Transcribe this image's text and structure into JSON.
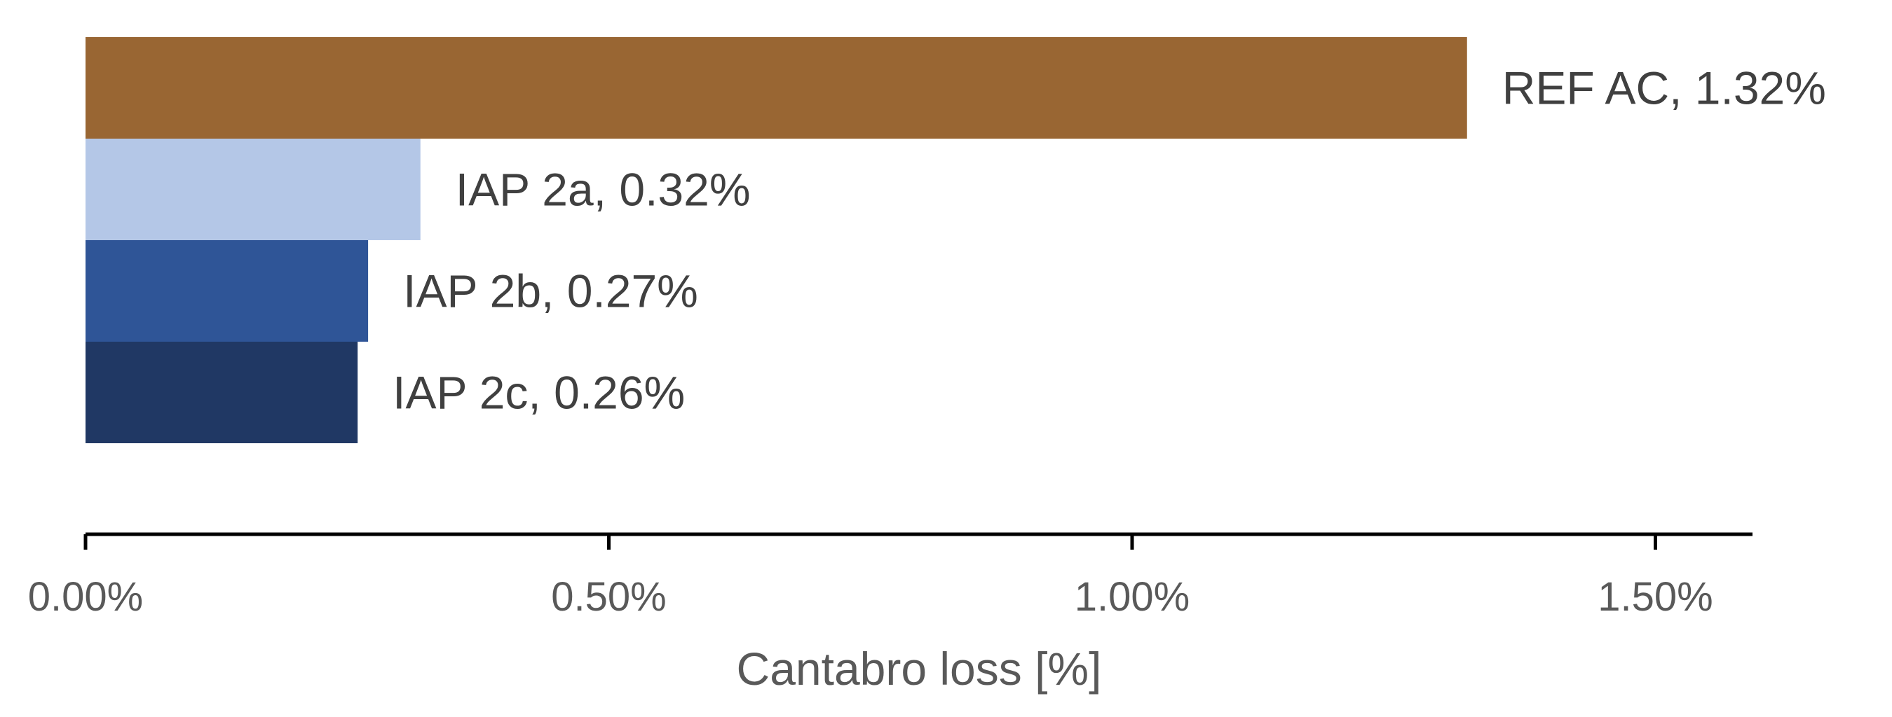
{
  "chart_data": {
    "type": "bar",
    "orientation": "horizontal",
    "categories": [
      "REF AC",
      "IAP 2a",
      "IAP 2b",
      "IAP 2c"
    ],
    "values": [
      1.32,
      0.32,
      0.27,
      0.26
    ],
    "data_labels": [
      "REF AC, 1.32%",
      "IAP 2a, 0.32%",
      "IAP 2b, 0.27%",
      "IAP 2c, 0.26%"
    ],
    "colors": [
      "#996633",
      "#B4C7E7",
      "#2F5597",
      "#203864"
    ],
    "title": "",
    "xlabel": "Cantabro loss [%]",
    "ylabel": "",
    "xlim": [
      0,
      1.6
    ],
    "xticks": [
      0,
      0.5,
      1.0,
      1.5
    ],
    "xtick_labels": [
      "0.00%",
      "0.50%",
      "1.00%",
      "1.50%"
    ],
    "grid": false,
    "legend": "none"
  }
}
